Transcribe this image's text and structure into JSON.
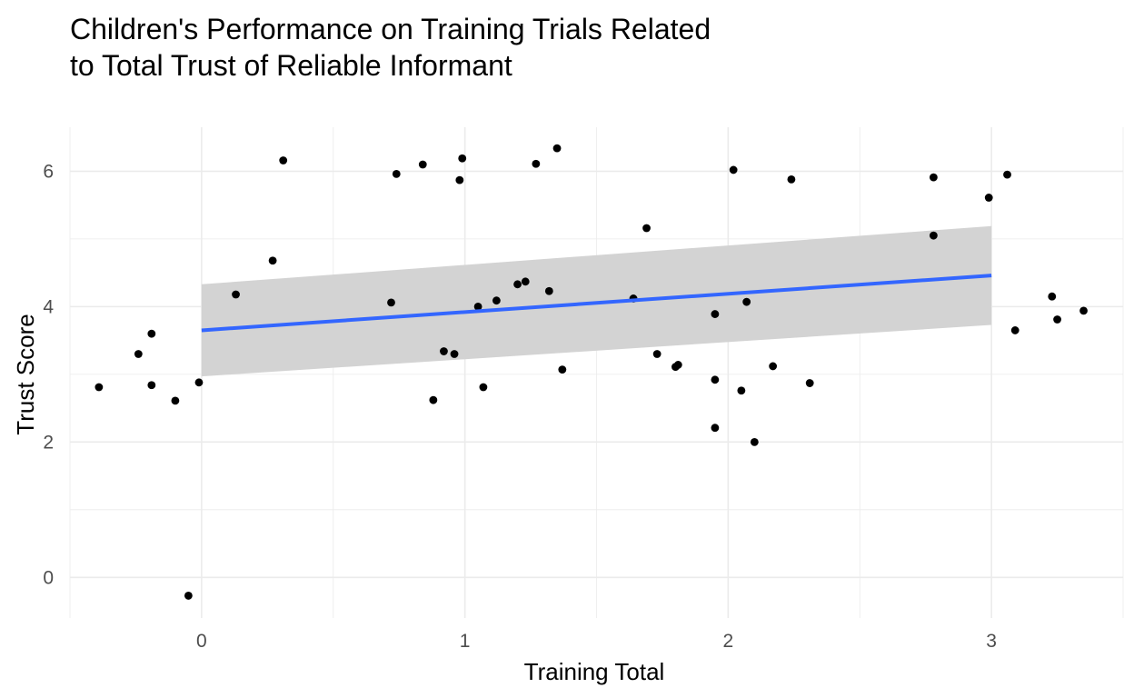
{
  "chart_data": {
    "type": "scatter",
    "title_lines": [
      "Children's Performance on Training Trials Related",
      "to Total Trust of Reliable Informant"
    ],
    "xlabel": "Training Total",
    "ylabel": "Trust Score",
    "xlim": [
      -0.5,
      3.5
    ],
    "ylim": [
      -0.6,
      6.65
    ],
    "x_ticks": [
      0,
      1,
      2,
      3
    ],
    "y_ticks": [
      0,
      2,
      4,
      6
    ],
    "grid": true,
    "points": [
      {
        "x": -0.39,
        "y": 2.81
      },
      {
        "x": -0.24,
        "y": 3.3
      },
      {
        "x": -0.19,
        "y": 3.6
      },
      {
        "x": -0.19,
        "y": 2.84
      },
      {
        "x": -0.1,
        "y": 2.61
      },
      {
        "x": -0.05,
        "y": -0.27
      },
      {
        "x": -0.01,
        "y": 2.88
      },
      {
        "x": 0.13,
        "y": 4.18
      },
      {
        "x": 0.27,
        "y": 4.68
      },
      {
        "x": 0.31,
        "y": 6.16
      },
      {
        "x": 0.72,
        "y": 4.06
      },
      {
        "x": 0.74,
        "y": 5.96
      },
      {
        "x": 0.84,
        "y": 6.1
      },
      {
        "x": 0.88,
        "y": 2.62
      },
      {
        "x": 0.92,
        "y": 3.34
      },
      {
        "x": 0.96,
        "y": 3.3
      },
      {
        "x": 0.98,
        "y": 5.87
      },
      {
        "x": 0.99,
        "y": 6.19
      },
      {
        "x": 1.05,
        "y": 4.0
      },
      {
        "x": 1.07,
        "y": 2.81
      },
      {
        "x": 1.12,
        "y": 4.09
      },
      {
        "x": 1.2,
        "y": 4.33
      },
      {
        "x": 1.23,
        "y": 4.37
      },
      {
        "x": 1.27,
        "y": 6.11
      },
      {
        "x": 1.32,
        "y": 4.23
      },
      {
        "x": 1.35,
        "y": 6.34
      },
      {
        "x": 1.37,
        "y": 3.07
      },
      {
        "x": 1.64,
        "y": 4.12
      },
      {
        "x": 1.69,
        "y": 5.16
      },
      {
        "x": 1.73,
        "y": 3.3
      },
      {
        "x": 1.8,
        "y": 3.11
      },
      {
        "x": 1.81,
        "y": 3.14
      },
      {
        "x": 1.95,
        "y": 3.89
      },
      {
        "x": 1.95,
        "y": 2.92
      },
      {
        "x": 1.95,
        "y": 2.21
      },
      {
        "x": 2.02,
        "y": 6.02
      },
      {
        "x": 2.05,
        "y": 2.76
      },
      {
        "x": 2.07,
        "y": 4.07
      },
      {
        "x": 2.1,
        "y": 2.0
      },
      {
        "x": 2.17,
        "y": 3.12
      },
      {
        "x": 2.24,
        "y": 5.88
      },
      {
        "x": 2.31,
        "y": 2.87
      },
      {
        "x": 2.78,
        "y": 5.91
      },
      {
        "x": 2.78,
        "y": 5.05
      },
      {
        "x": 2.99,
        "y": 5.61
      },
      {
        "x": 3.06,
        "y": 5.95
      },
      {
        "x": 3.09,
        "y": 3.65
      },
      {
        "x": 3.23,
        "y": 4.15
      },
      {
        "x": 3.25,
        "y": 3.81
      },
      {
        "x": 3.35,
        "y": 3.94
      }
    ],
    "trend": {
      "x_range": [
        0,
        3
      ],
      "fit": [
        3.65,
        4.46
      ],
      "ci_lower": [
        2.97,
        3.73
      ],
      "ci_upper": [
        4.33,
        5.19
      ]
    },
    "colors": {
      "points": "#000000",
      "line": "#3366ff",
      "ribbon": "#d3d3d3",
      "grid": "#ebebeb",
      "tick_text": "#4d4d4d"
    }
  }
}
